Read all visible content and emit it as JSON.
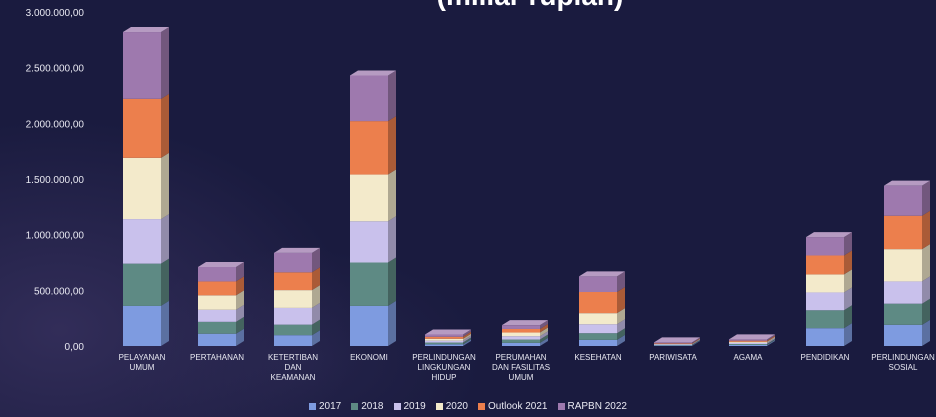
{
  "chart_data": {
    "type": "bar",
    "stacked": true,
    "title": "(miliar rupiah)",
    "categories": [
      "PELAYANAN UMUM",
      "PERTAHANAN",
      "KETERTIBAN DAN KEAMANAN",
      "EKONOMI",
      "PERLINDUNGAN LINGKUNGAN HIDUP",
      "PERUMAHAN DAN FASILITAS UMUM",
      "KESEHATAN",
      "PARIWISATA",
      "AGAMA",
      "PENDIDIKAN",
      "PERLINDUNGAN SOSIAL"
    ],
    "category_lines": [
      [
        "PELAYANAN",
        "UMUM"
      ],
      [
        "PERTAHANAN"
      ],
      [
        "KETERTIBAN",
        "DAN",
        "KEAMANAN"
      ],
      [
        "EKONOMI"
      ],
      [
        "PERLINDUNGAN",
        "LINGKUNGAN",
        "HIDUP"
      ],
      [
        "PERUMAHAN",
        "DAN FASILITAS",
        "UMUM"
      ],
      [
        "KESEHATAN"
      ],
      [
        "PARIWISATA"
      ],
      [
        "AGAMA"
      ],
      [
        "PENDIDIKAN"
      ],
      [
        "PERLINDUNGAN",
        "SOSIAL"
      ]
    ],
    "series": [
      {
        "name": "2017",
        "color": "#7e9be0",
        "values": [
          360000,
          110000,
          97000,
          360000,
          15000,
          28000,
          55000,
          5000,
          9000,
          160000,
          190000
        ]
      },
      {
        "name": "2018",
        "color": "#5e8a84",
        "values": [
          380000,
          107000,
          95000,
          390000,
          16000,
          30000,
          60000,
          5000,
          9000,
          161000,
          190000
        ]
      },
      {
        "name": "2019",
        "color": "#c9c1ec",
        "values": [
          400000,
          108000,
          150000,
          370000,
          17000,
          30000,
          80000,
          5000,
          10000,
          160000,
          200000
        ]
      },
      {
        "name": "2020",
        "color": "#f3eacb",
        "values": [
          550000,
          130000,
          160000,
          420000,
          17000,
          33000,
          100000,
          4000,
          10000,
          162000,
          290000
        ]
      },
      {
        "name": "Outlook 2021",
        "color": "#ec7f4d",
        "values": [
          530000,
          125000,
          160000,
          480000,
          18000,
          32000,
          190000,
          6000,
          10000,
          170000,
          300000
        ]
      },
      {
        "name": "RAPBN 2022",
        "color": "#9e79ae",
        "values": [
          600000,
          130000,
          175000,
          410000,
          20000,
          34000,
          140000,
          7000,
          12000,
          165000,
          270000
        ]
      }
    ],
    "yticks": [
      "0,00",
      "500.000,00",
      "1.000.000,00",
      "1.500.000,00",
      "2.000.000,00",
      "2.500.000,00",
      "3.000.000,00"
    ],
    "ylim": [
      0,
      3000000
    ],
    "legend_position": "bottom",
    "grid": false
  },
  "colors": {
    "background": "#1a1b3f",
    "text": "#e9e9f2"
  }
}
